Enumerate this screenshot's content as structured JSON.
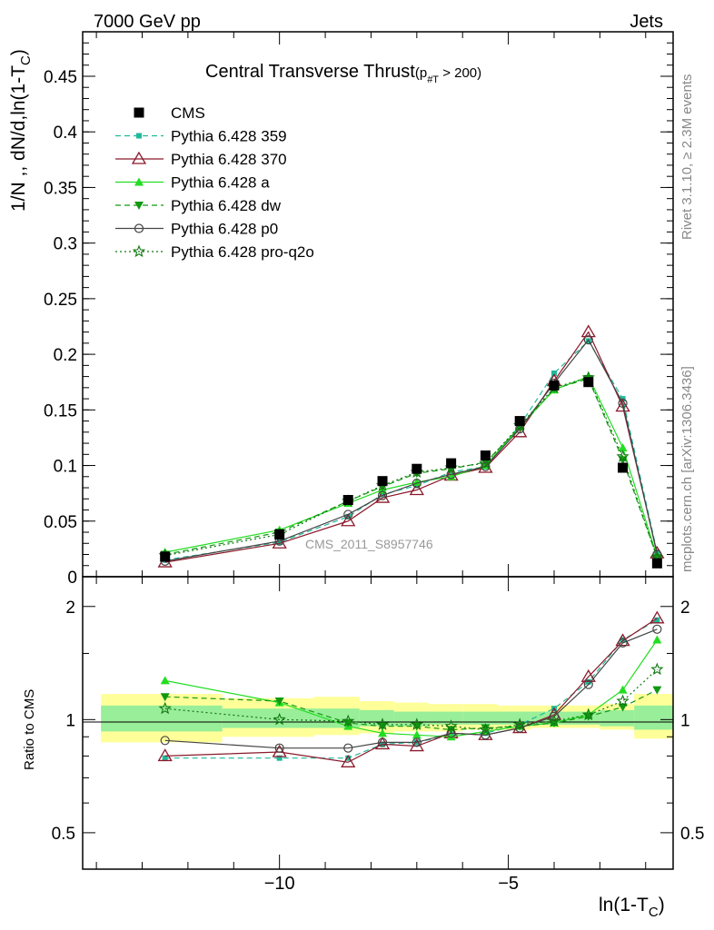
{
  "header": {
    "left": "7000 GeV pp",
    "right": "Jets"
  },
  "side_labels": {
    "top": "Rivet 3.1.10, ≥ 2.3M events",
    "bottom": "mcplots.cern.ch [arXiv:1306.3436]"
  },
  "watermark": "CMS_2011_S8957746",
  "colors": {
    "data": "#000000",
    "p359": "#1fb99a",
    "p370": "#8b1a2b",
    "pa": "#22dd22",
    "pdw": "#119911",
    "pp0": "#444444",
    "pq2o": "#117711",
    "band_outer": "#ffff99",
    "band_inner": "#99ee99"
  },
  "chart_data": [
    {
      "type": "line",
      "title": "Central Transverse Thrust",
      "title_sub": "(p",
      "title_sub2": "#T",
      "title_sub3": " > 200)",
      "ylabel": "1/N ,, dN/d,ln(1-T",
      "ylabel_sub": "C",
      "ylabel_end": ")",
      "ylim": [
        0,
        0.49
      ],
      "xlim": [
        -14.3,
        -1.4
      ],
      "yticks": [
        0,
        0.05,
        0.1,
        0.15,
        0.2,
        0.25,
        0.3,
        0.35,
        0.4,
        0.45
      ],
      "ytick_labels": [
        "0",
        "0.05",
        "0.1",
        "0.15",
        "0.2",
        "0.25",
        "0.3",
        "0.35",
        "0.4",
        "0.45"
      ],
      "x": [
        -12.5,
        -10.0,
        -8.5,
        -7.75,
        -7.0,
        -6.25,
        -5.5,
        -4.75,
        -4.0,
        -3.25,
        -2.5,
        -1.75
      ],
      "series": [
        {
          "name": "CMS",
          "key": "data",
          "marker": "square",
          "dash": "none",
          "values": [
            0.018,
            0.038,
            0.069,
            0.086,
            0.097,
            0.102,
            0.109,
            0.14,
            0.172,
            0.175,
            0.098,
            0.012
          ]
        },
        {
          "name": "Pythia 6.428 359",
          "key": "p359",
          "marker": "smallsquare",
          "dash": "6,4",
          "values": [
            0.015,
            0.031,
            0.054,
            0.074,
            0.082,
            0.094,
            0.099,
            0.136,
            0.183,
            0.212,
            0.16,
            0.022
          ]
        },
        {
          "name": "Pythia 6.428 370",
          "key": "p370",
          "marker": "triangle-open",
          "dash": "none",
          "values": [
            0.013,
            0.03,
            0.05,
            0.071,
            0.078,
            0.091,
            0.098,
            0.13,
            0.176,
            0.22,
            0.153,
            0.021
          ]
        },
        {
          "name": "Pythia 6.428 a",
          "key": "pa",
          "marker": "triangle",
          "dash": "none",
          "values": [
            0.022,
            0.042,
            0.066,
            0.078,
            0.085,
            0.09,
            0.1,
            0.135,
            0.168,
            0.18,
            0.116,
            0.018
          ]
        },
        {
          "name": "Pythia 6.428 dw",
          "key": "pdw",
          "marker": "triangle-down",
          "dash": "6,4",
          "values": [
            0.02,
            0.04,
            0.068,
            0.081,
            0.093,
            0.097,
            0.103,
            0.134,
            0.169,
            0.178,
            0.105,
            0.017
          ]
        },
        {
          "name": "Pythia 6.428 p0",
          "key": "pp0",
          "marker": "circle-open",
          "dash": "none",
          "values": [
            0.014,
            0.032,
            0.056,
            0.073,
            0.084,
            0.092,
            0.099,
            0.133,
            0.174,
            0.213,
            0.156,
            0.02
          ]
        },
        {
          "name": "Pythia 6.428 pro-q2o",
          "key": "pq2o",
          "marker": "star",
          "dash": "2,3",
          "values": [
            0.019,
            0.038,
            0.068,
            0.082,
            0.094,
            0.098,
            0.102,
            0.136,
            0.17,
            0.179,
            0.108,
            0.017
          ]
        }
      ]
    },
    {
      "type": "line",
      "ylabel": "Ratio to CMS",
      "xlabel": "ln(1-T",
      "xlabel_sub": "C",
      "xlabel_end": ")",
      "ylog": true,
      "ylim": [
        0.4,
        2.4
      ],
      "xlim": [
        -14.3,
        -1.4
      ],
      "xticks": [
        -10,
        -5
      ],
      "xtick_labels": [
        "−10",
        "−5"
      ],
      "yticks": [
        0.5,
        1,
        2
      ],
      "ytick_labels": [
        "0.5",
        "1",
        "2"
      ],
      "band_edges": [
        -13.9,
        -11.25,
        -9.25,
        -8.25,
        -7.5,
        -6.75,
        -6.0,
        -5.25,
        -4.5,
        -3.75,
        -3.0,
        -2.25,
        -1.4
      ],
      "band_outer_lo": [
        0.87,
        0.9,
        0.91,
        0.92,
        0.93,
        0.93,
        0.94,
        0.94,
        0.95,
        0.95,
        0.94,
        0.89
      ],
      "band_outer_hi": [
        1.17,
        1.14,
        1.15,
        1.12,
        1.11,
        1.1,
        1.1,
        1.09,
        1.09,
        1.09,
        1.1,
        1.17
      ],
      "band_inner_lo": [
        0.93,
        0.95,
        0.95,
        0.96,
        0.96,
        0.97,
        0.97,
        0.97,
        0.97,
        0.97,
        0.96,
        0.94
      ],
      "band_inner_hi": [
        1.09,
        1.07,
        1.07,
        1.06,
        1.05,
        1.05,
        1.05,
        1.05,
        1.05,
        1.05,
        1.06,
        1.09
      ],
      "series": [
        {
          "name": "Pythia 6.428 359",
          "key": "p359",
          "values": [
            0.79,
            0.79,
            0.79,
            0.86,
            0.87,
            0.91,
            0.92,
            0.97,
            1.07,
            1.26,
            1.63,
            1.84
          ]
        },
        {
          "name": "Pythia 6.428 370",
          "key": "p370",
          "values": [
            0.8,
            0.82,
            0.77,
            0.86,
            0.85,
            0.92,
            0.91,
            0.95,
            1.03,
            1.3,
            1.62,
            1.86
          ]
        },
        {
          "name": "Pythia 6.428 a",
          "key": "pa",
          "values": [
            1.27,
            1.11,
            0.96,
            0.92,
            0.91,
            0.9,
            0.93,
            0.96,
            0.98,
            1.03,
            1.2,
            1.63
          ]
        },
        {
          "name": "Pythia 6.428 dw",
          "key": "pdw",
          "values": [
            1.15,
            1.12,
            0.98,
            0.96,
            0.96,
            0.94,
            0.95,
            0.96,
            0.98,
            1.02,
            1.08,
            1.2
          ]
        },
        {
          "name": "Pythia 6.428 p0",
          "key": "pp0",
          "values": [
            0.88,
            0.84,
            0.84,
            0.87,
            0.87,
            0.92,
            0.91,
            0.95,
            1.02,
            1.24,
            1.6,
            1.74
          ]
        },
        {
          "name": "Pythia 6.428 pro-q2o",
          "key": "pq2o",
          "values": [
            1.07,
            1.0,
            0.99,
            0.97,
            0.97,
            0.96,
            0.94,
            0.97,
            0.99,
            1.03,
            1.12,
            1.36
          ]
        }
      ]
    }
  ]
}
